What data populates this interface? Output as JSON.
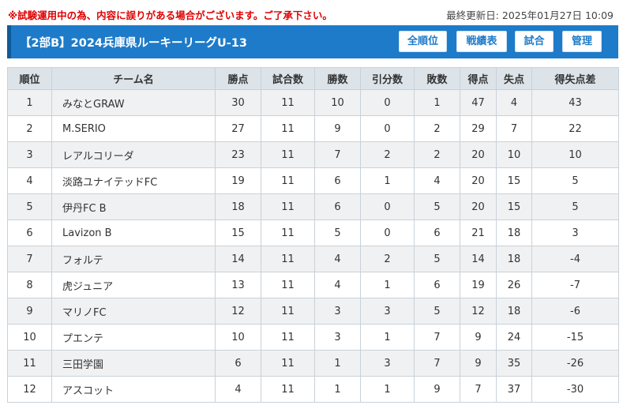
{
  "notice": "※試験運用中の為、内容に誤りがある場合がございます。ご了承下さい。",
  "last_updated": "最終更新日: 2025年01月27日 10:09",
  "header": {
    "title": "【2部B】2024兵庫県ルーキーリーグU-13",
    "buttons": [
      "全順位",
      "戦績表",
      "試合",
      "管理"
    ]
  },
  "table": {
    "columns": [
      "順位",
      "チーム名",
      "勝点",
      "試合数",
      "勝数",
      "引分数",
      "敗数",
      "得点",
      "失点",
      "得失点差"
    ],
    "rows": [
      [
        "1",
        "みなとGRAW",
        "30",
        "11",
        "10",
        "0",
        "1",
        "47",
        "4",
        "43"
      ],
      [
        "2",
        "M.SERIO",
        "27",
        "11",
        "9",
        "0",
        "2",
        "29",
        "7",
        "22"
      ],
      [
        "3",
        "レアルコリーダ",
        "23",
        "11",
        "7",
        "2",
        "2",
        "20",
        "10",
        "10"
      ],
      [
        "4",
        "淡路ユナイテッドFC",
        "19",
        "11",
        "6",
        "1",
        "4",
        "20",
        "15",
        "5"
      ],
      [
        "5",
        "伊丹FC B",
        "18",
        "11",
        "6",
        "0",
        "5",
        "20",
        "15",
        "5"
      ],
      [
        "6",
        "Lavizon B",
        "15",
        "11",
        "5",
        "0",
        "6",
        "21",
        "18",
        "3"
      ],
      [
        "7",
        "フォルテ",
        "14",
        "11",
        "4",
        "2",
        "5",
        "14",
        "18",
        "-4"
      ],
      [
        "8",
        "虎ジュニア",
        "13",
        "11",
        "4",
        "1",
        "6",
        "19",
        "26",
        "-7"
      ],
      [
        "9",
        "マリノFC",
        "12",
        "11",
        "3",
        "3",
        "5",
        "12",
        "18",
        "-6"
      ],
      [
        "10",
        "プエンテ",
        "10",
        "11",
        "3",
        "1",
        "7",
        "9",
        "24",
        "-15"
      ],
      [
        "11",
        "三田学園",
        "6",
        "11",
        "1",
        "3",
        "7",
        "9",
        "35",
        "-26"
      ],
      [
        "12",
        "アスコット",
        "4",
        "11",
        "1",
        "1",
        "9",
        "7",
        "37",
        "-30"
      ]
    ]
  },
  "colors": {
    "header_bg": "#1e7bc9",
    "notice_text": "#e00000",
    "table_header_bg": "#dce3e9",
    "row_alt_bg": "#f0f1f2"
  }
}
